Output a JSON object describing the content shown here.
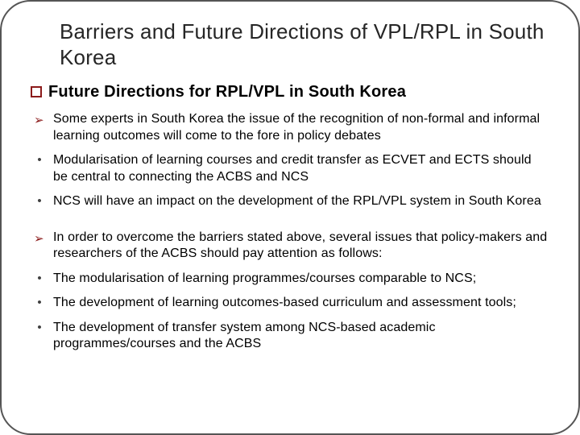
{
  "title": "Barriers and Future Directions of VPL/RPL in South Korea",
  "subheading": "Future Directions for RPL/VPL in South Korea",
  "items": [
    {
      "marker": "arrow",
      "text": "Some experts in South Korea the issue of the recognition of non-formal and informal learning outcomes will come to the fore in policy debates"
    },
    {
      "marker": "dot",
      "text": "Modularisation of learning courses and credit transfer as ECVET and ECTS should be central to connecting the ACBS and NCS"
    },
    {
      "marker": "dot",
      "text": "NCS will have an impact on the development of the RPL/VPL system in South Korea"
    },
    {
      "marker": "gap",
      "text": ""
    },
    {
      "marker": "arrow",
      "text": " In order to overcome the barriers stated above, several issues that policy-makers and researchers of the ACBS should pay attention as follows:"
    },
    {
      "marker": "dot",
      "text": "The modularisation of learning programmes/courses comparable to NCS;"
    },
    {
      "marker": "dot",
      "text": "The development of learning outcomes-based curriculum and assessment tools;"
    },
    {
      "marker": "dot",
      "text": "The development of transfer system among NCS-based academic programmes/courses and the ACBS"
    }
  ],
  "colors": {
    "accent": "#8b1a1a",
    "text": "#000000",
    "title": "#262626",
    "border": "#555555",
    "background": "#ffffff"
  },
  "fonts": {
    "title_size": 26,
    "sub_size": 20,
    "body_size": 16
  }
}
